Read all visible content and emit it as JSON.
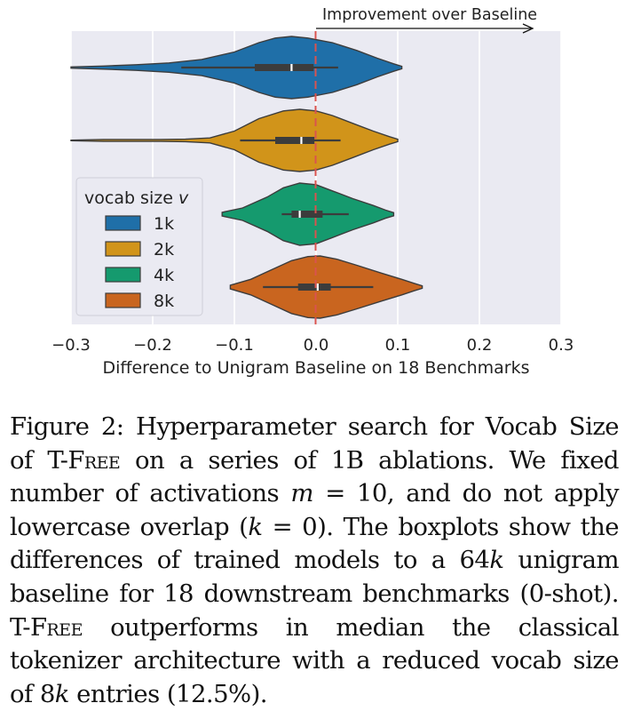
{
  "chart_data": {
    "type": "violin",
    "xlabel": "Difference to Unigram Baseline on 18 Benchmarks",
    "xlim": [
      -0.3,
      0.3
    ],
    "xticks": [
      -0.3,
      -0.2,
      -0.1,
      0.0,
      0.1,
      0.2,
      0.3
    ],
    "xtick_labels": [
      "−0.3",
      "−0.2",
      "−0.1",
      "0.0",
      "0.1",
      "0.2",
      "0.3"
    ],
    "grid": true,
    "legend": {
      "title": "vocab size v",
      "placement": "center-left"
    },
    "reference_line": {
      "x": 0.0,
      "color": "#d9534f",
      "style": "dashed"
    },
    "annotation": {
      "text": "Improvement over Baseline",
      "arrow_from": 0.0,
      "arrow_to": 0.27
    },
    "series": [
      {
        "name": "1k",
        "color": "#1f6fa8",
        "min": -0.3,
        "max": 0.105,
        "q1": -0.075,
        "median": -0.03,
        "q3": -0.003,
        "whisker_low": -0.165,
        "whisker_high": 0.027,
        "density": [
          [
            -0.3,
            0.02
          ],
          [
            -0.26,
            0.05
          ],
          [
            -0.22,
            0.09
          ],
          [
            -0.18,
            0.15
          ],
          [
            -0.14,
            0.26
          ],
          [
            -0.1,
            0.5
          ],
          [
            -0.07,
            0.8
          ],
          [
            -0.05,
            0.95
          ],
          [
            -0.03,
            1.0
          ],
          [
            -0.01,
            0.95
          ],
          [
            0.02,
            0.8
          ],
          [
            0.05,
            0.55
          ],
          [
            0.075,
            0.3
          ],
          [
            0.095,
            0.12
          ],
          [
            0.105,
            0.04
          ]
        ]
      },
      {
        "name": "2k",
        "color": "#d1941a",
        "min": -0.3,
        "max": 0.1,
        "q1": -0.05,
        "median": -0.018,
        "q3": -0.002,
        "whisker_low": -0.093,
        "whisker_high": 0.03,
        "density": [
          [
            -0.3,
            0.01
          ],
          [
            -0.26,
            0.03
          ],
          [
            -0.22,
            0.03
          ],
          [
            -0.19,
            0.03
          ],
          [
            -0.16,
            0.04
          ],
          [
            -0.13,
            0.08
          ],
          [
            -0.1,
            0.3
          ],
          [
            -0.07,
            0.7
          ],
          [
            -0.04,
            0.95
          ],
          [
            -0.02,
            1.0
          ],
          [
            0.0,
            0.95
          ],
          [
            0.02,
            0.8
          ],
          [
            0.045,
            0.55
          ],
          [
            0.07,
            0.3
          ],
          [
            0.09,
            0.12
          ],
          [
            0.1,
            0.04
          ]
        ]
      },
      {
        "name": "4k",
        "color": "#159a6e",
        "min": -0.115,
        "max": 0.095,
        "q1": -0.03,
        "median": -0.02,
        "q3": 0.008,
        "whisker_low": -0.042,
        "whisker_high": 0.04,
        "density": [
          [
            -0.115,
            0.06
          ],
          [
            -0.09,
            0.2
          ],
          [
            -0.06,
            0.55
          ],
          [
            -0.04,
            0.85
          ],
          [
            -0.02,
            1.0
          ],
          [
            0.0,
            0.95
          ],
          [
            0.02,
            0.75
          ],
          [
            0.045,
            0.5
          ],
          [
            0.07,
            0.28
          ],
          [
            0.085,
            0.13
          ],
          [
            0.095,
            0.05
          ]
        ]
      },
      {
        "name": "8k",
        "color": "#c9651f",
        "min": -0.105,
        "max": 0.13,
        "q1": -0.022,
        "median": 0.002,
        "q3": 0.018,
        "whisker_low": -0.065,
        "whisker_high": 0.07,
        "density": [
          [
            -0.105,
            0.06
          ],
          [
            -0.08,
            0.25
          ],
          [
            -0.055,
            0.55
          ],
          [
            -0.03,
            0.85
          ],
          [
            -0.01,
            0.98
          ],
          [
            0.005,
            1.0
          ],
          [
            0.025,
            0.9
          ],
          [
            0.05,
            0.7
          ],
          [
            0.08,
            0.45
          ],
          [
            0.105,
            0.25
          ],
          [
            0.12,
            0.12
          ],
          [
            0.13,
            0.04
          ]
        ]
      }
    ]
  },
  "caption": {
    "label": "Figure 2:",
    "part1": "Hyperparameter search for Vocab Size of T-",
    "free_small_caps": "Free",
    "part2": "on a series of 1B ablations. We fixed number of activations",
    "m_var": "m",
    "eq_ten": "= 10",
    "part3": ", and do not apply lowercase overlap (",
    "k_var": "k",
    "eq_zero": "= 0",
    "part4": "). The boxplots show the differences of trained models to a",
    "sixty_four": "64",
    "k_var2": "k",
    "part5": "unigram baseline for 18 downstream benchmarks (0-shot). T-",
    "free2": "Free",
    "part6": "outperforms in median the classical tokenizer architecture with a reduced vocab size of",
    "eight": "8",
    "k_var3": "k",
    "part7": "entries",
    "percent": "(12.5%)."
  }
}
